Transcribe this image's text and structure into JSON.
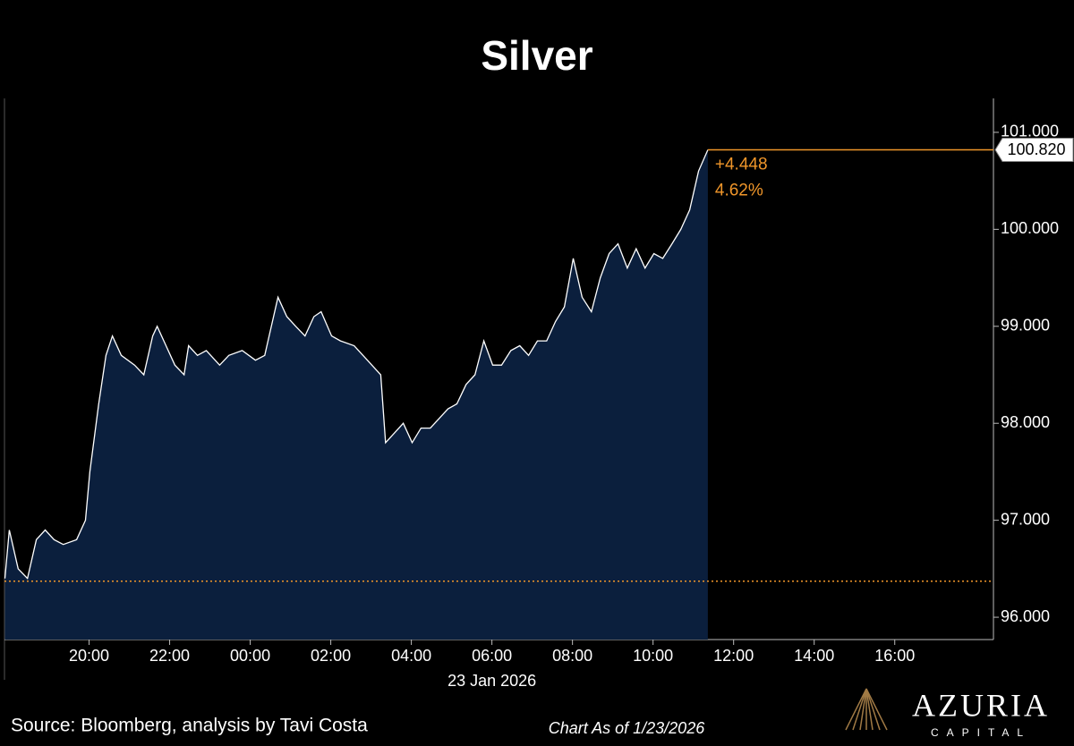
{
  "chart_data": {
    "type": "area",
    "title": "Silver",
    "x": [
      -6.09,
      -5.98,
      -5.76,
      -5.53,
      -5.31,
      -5.09,
      -4.87,
      -4.64,
      -4.31,
      -4.09,
      -3.98,
      -3.76,
      -3.58,
      -3.42,
      -3.2,
      -2.87,
      -2.64,
      -2.42,
      -2.31,
      -2.09,
      -1.87,
      -1.64,
      -1.53,
      -1.31,
      -1.09,
      -0.76,
      -0.53,
      -0.2,
      0.13,
      0.36,
      0.47,
      0.69,
      0.91,
      1.13,
      1.36,
      1.58,
      1.76,
      2.02,
      2.24,
      2.58,
      2.91,
      3.13,
      3.24,
      3.36,
      3.58,
      3.8,
      4.02,
      4.24,
      4.47,
      4.69,
      4.91,
      5.13,
      5.36,
      5.58,
      5.8,
      6.02,
      6.24,
      6.47,
      6.69,
      6.91,
      7.13,
      7.36,
      7.58,
      7.8,
      8.02,
      8.24,
      8.47,
      8.69,
      8.91,
      9.13,
      9.36,
      9.58,
      9.8,
      10.02,
      10.24,
      10.47,
      10.69,
      10.91,
      11.13,
      11.36
    ],
    "values": [
      96.4,
      96.9,
      96.5,
      96.4,
      96.8,
      96.9,
      96.8,
      96.75,
      96.8,
      97.0,
      97.5,
      98.2,
      98.7,
      98.9,
      98.7,
      98.6,
      98.5,
      98.9,
      99.0,
      98.8,
      98.6,
      98.5,
      98.8,
      98.7,
      98.75,
      98.6,
      98.7,
      98.75,
      98.65,
      98.7,
      98.9,
      99.3,
      99.1,
      99.0,
      98.9,
      99.1,
      99.15,
      98.9,
      98.85,
      98.8,
      98.65,
      98.55,
      98.5,
      97.8,
      97.9,
      98.0,
      97.8,
      97.95,
      97.95,
      98.05,
      98.15,
      98.2,
      98.4,
      98.5,
      98.85,
      98.6,
      98.6,
      98.75,
      98.8,
      98.7,
      98.85,
      98.85,
      99.05,
      99.2,
      99.7,
      99.3,
      99.15,
      99.5,
      99.75,
      99.85,
      99.6,
      99.8,
      99.6,
      99.75,
      99.7,
      99.85,
      100.0,
      100.2,
      100.6,
      100.82
    ],
    "line_color": "#ffffff",
    "fill_color": "#0b1f3d",
    "accent_color": "#f0962a",
    "xlim": [
      -6.1,
      18.45
    ],
    "ylim": [
      95.77,
      101.35
    ],
    "xticks": [
      {
        "value": -4,
        "label": "20:00"
      },
      {
        "value": -2,
        "label": "22:00"
      },
      {
        "value": 0,
        "label": "00:00"
      },
      {
        "value": 2,
        "label": "02:00"
      },
      {
        "value": 4,
        "label": "04:00"
      },
      {
        "value": 6,
        "label": "06:00"
      },
      {
        "value": 8,
        "label": "08:00"
      },
      {
        "value": 10,
        "label": "10:00"
      },
      {
        "value": 12,
        "label": "12:00"
      },
      {
        "value": 14,
        "label": "14:00"
      },
      {
        "value": 16,
        "label": "16:00"
      }
    ],
    "yticks": [
      {
        "value": 96,
        "label": "96.000"
      },
      {
        "value": 97,
        "label": "97.000"
      },
      {
        "value": 98,
        "label": "98.000"
      },
      {
        "value": 99,
        "label": "99.000"
      },
      {
        "value": 100,
        "label": "100.000"
      },
      {
        "value": 101,
        "label": "101.000"
      }
    ],
    "x_sublabel": "23 Jan 2026",
    "last_price": {
      "value": 100.82,
      "label": "100.820"
    },
    "change": "+4.448",
    "change_pct": "4.62%",
    "reference_value": 96.372
  },
  "footer": {
    "source": "Source: Bloomberg, analysis by Tavi Costa",
    "note": "Chart As of 1/23/2026"
  },
  "logo": {
    "name": "AZURIA",
    "tagline": "CAPITAL"
  }
}
